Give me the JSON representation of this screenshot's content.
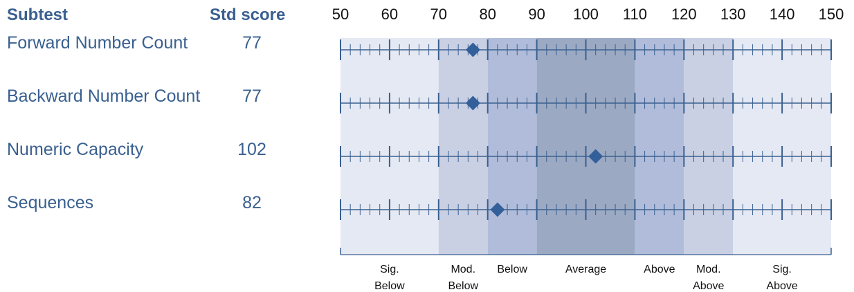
{
  "headers": {
    "subtest": "Subtest",
    "score": "Std score"
  },
  "colors": {
    "text": "#3a6090",
    "tick": "#3a6090",
    "marker": "#33609a",
    "bands": [
      "#e5e9f3",
      "#c9d0e3",
      "#b0bcd9",
      "#9ba9c3",
      "#b0bcd9",
      "#c9d0e3",
      "#e5e9f3"
    ]
  },
  "chart_data": {
    "type": "scatter",
    "x_axis": {
      "min": 50,
      "max": 150,
      "ticks": [
        50,
        60,
        70,
        80,
        90,
        100,
        110,
        120,
        130,
        140,
        150
      ],
      "minor_step": 2
    },
    "bands": [
      {
        "from": 50,
        "to": 70,
        "label": [
          "Sig.",
          "Below"
        ]
      },
      {
        "from": 70,
        "to": 80,
        "label": [
          "Mod.",
          "Below"
        ]
      },
      {
        "from": 80,
        "to": 90,
        "label": [
          "Below"
        ]
      },
      {
        "from": 90,
        "to": 110,
        "label": [
          "Average"
        ]
      },
      {
        "from": 110,
        "to": 120,
        "label": [
          "Above"
        ]
      },
      {
        "from": 120,
        "to": 130,
        "label": [
          "Mod.",
          "Above"
        ]
      },
      {
        "from": 130,
        "to": 150,
        "label": [
          "Sig.",
          "Above"
        ]
      }
    ],
    "rows": [
      {
        "name": "Forward Number Count",
        "score": 77
      },
      {
        "name": "Backward Number Count",
        "score": 77
      },
      {
        "name": "Numeric Capacity",
        "score": 102
      },
      {
        "name": "Sequences",
        "score": 82
      }
    ]
  }
}
